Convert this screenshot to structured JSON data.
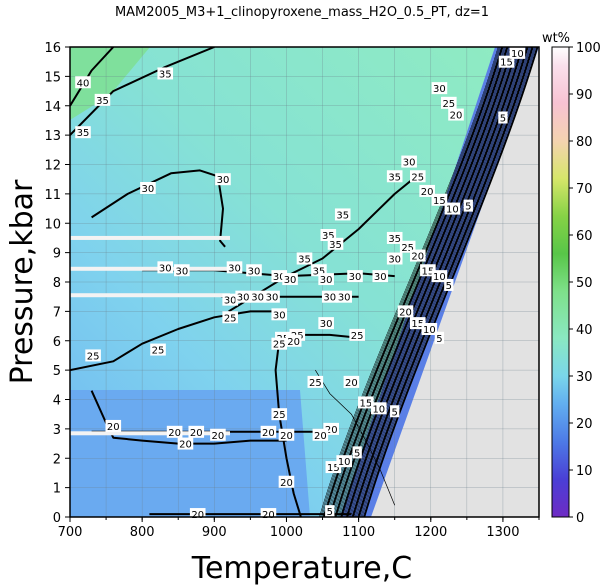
{
  "chart_data": {
    "type": "heatmap",
    "title": "MAM2005_M3+1_clinopyroxene_mass_H2O_0.5_PT, dz=1",
    "xlabel": "Temperature,C",
    "ylabel": "Pressure,kbar",
    "xlim": [
      700,
      1350
    ],
    "ylim": [
      0,
      16
    ],
    "x_ticks": [
      "700",
      "800",
      "900",
      "1000",
      "1100",
      "1200",
      "1300"
    ],
    "y_ticks": [
      "0",
      "1",
      "2",
      "3",
      "4",
      "5",
      "6",
      "7",
      "8",
      "9",
      "10",
      "11",
      "12",
      "13",
      "14",
      "15",
      "16"
    ],
    "grid": true,
    "colorbar": {
      "label": "wt%",
      "range": [
        0,
        100
      ],
      "ticks": [
        "0",
        "10",
        "20",
        "30",
        "40",
        "50",
        "60",
        "70",
        "80",
        "90",
        "100"
      ]
    },
    "bold_contours": [
      5,
      10,
      15,
      20,
      25,
      30,
      35,
      40
    ],
    "contour_labels": [
      {
        "text": "40",
        "x": 718,
        "y": 14.8
      },
      {
        "text": "35",
        "x": 745,
        "y": 14.2
      },
      {
        "text": "35",
        "x": 832,
        "y": 15.1
      },
      {
        "text": "35",
        "x": 718,
        "y": 13.1
      },
      {
        "text": "30",
        "x": 808,
        "y": 11.2
      },
      {
        "text": "30",
        "x": 912,
        "y": 11.5
      },
      {
        "text": "30",
        "x": 1212,
        "y": 14.6
      },
      {
        "text": "25",
        "x": 1225,
        "y": 14.1
      },
      {
        "text": "20",
        "x": 1235,
        "y": 13.7
      },
      {
        "text": "15",
        "x": 1305,
        "y": 15.5
      },
      {
        "text": "10",
        "x": 1320,
        "y": 15.8
      },
      {
        "text": "5",
        "x": 1300,
        "y": 13.6
      },
      {
        "text": "35",
        "x": 1150,
        "y": 11.6
      },
      {
        "text": "30",
        "x": 1170,
        "y": 12.1
      },
      {
        "text": "25",
        "x": 1182,
        "y": 11.6
      },
      {
        "text": "20",
        "x": 1195,
        "y": 11.1
      },
      {
        "text": "15",
        "x": 1212,
        "y": 10.8
      },
      {
        "text": "10",
        "x": 1230,
        "y": 10.5
      },
      {
        "text": "5",
        "x": 1252,
        "y": 10.6
      },
      {
        "text": "35",
        "x": 1078,
        "y": 10.3
      },
      {
        "text": "35",
        "x": 1150,
        "y": 9.5
      },
      {
        "text": "35",
        "x": 1058,
        "y": 9.6
      },
      {
        "text": "35",
        "x": 1068,
        "y": 9.3
      },
      {
        "text": "35",
        "x": 1025,
        "y": 8.8
      },
      {
        "text": "35",
        "x": 1045,
        "y": 8.4
      },
      {
        "text": "30",
        "x": 1150,
        "y": 8.8
      },
      {
        "text": "25",
        "x": 1168,
        "y": 9.2
      },
      {
        "text": "20",
        "x": 1182,
        "y": 8.9
      },
      {
        "text": "15",
        "x": 1196,
        "y": 8.4
      },
      {
        "text": "10",
        "x": 1212,
        "y": 8.2
      },
      {
        "text": "5",
        "x": 1225,
        "y": 7.9
      },
      {
        "text": "30",
        "x": 832,
        "y": 8.5
      },
      {
        "text": "30",
        "x": 855,
        "y": 8.4
      },
      {
        "text": "30",
        "x": 928,
        "y": 8.5
      },
      {
        "text": "30",
        "x": 955,
        "y": 8.4
      },
      {
        "text": "30",
        "x": 990,
        "y": 8.2
      },
      {
        "text": "30",
        "x": 1005,
        "y": 8.1
      },
      {
        "text": "30",
        "x": 1055,
        "y": 8.1
      },
      {
        "text": "30",
        "x": 1095,
        "y": 8.2
      },
      {
        "text": "30",
        "x": 1130,
        "y": 8.2
      },
      {
        "text": "30",
        "x": 922,
        "y": 7.4
      },
      {
        "text": "30",
        "x": 940,
        "y": 7.5
      },
      {
        "text": "30",
        "x": 960,
        "y": 7.5
      },
      {
        "text": "30",
        "x": 980,
        "y": 7.5
      },
      {
        "text": "30",
        "x": 1060,
        "y": 7.5
      },
      {
        "text": "30",
        "x": 1080,
        "y": 7.5
      },
      {
        "text": "30",
        "x": 990,
        "y": 6.9
      },
      {
        "text": "30",
        "x": 1055,
        "y": 6.6
      },
      {
        "text": "25",
        "x": 922,
        "y": 6.8
      },
      {
        "text": "25",
        "x": 995,
        "y": 6.1
      },
      {
        "text": "25",
        "x": 1015,
        "y": 6.2
      },
      {
        "text": "25",
        "x": 1098,
        "y": 6.2
      },
      {
        "text": "25",
        "x": 990,
        "y": 5.9
      },
      {
        "text": "20",
        "x": 1010,
        "y": 6.0
      },
      {
        "text": "20",
        "x": 1165,
        "y": 7.0
      },
      {
        "text": "15",
        "x": 1182,
        "y": 6.6
      },
      {
        "text": "10",
        "x": 1198,
        "y": 6.4
      },
      {
        "text": "5",
        "x": 1212,
        "y": 6.1
      },
      {
        "text": "25",
        "x": 732,
        "y": 5.5
      },
      {
        "text": "25",
        "x": 822,
        "y": 5.7
      },
      {
        "text": "25",
        "x": 1040,
        "y": 4.6
      },
      {
        "text": "20",
        "x": 1090,
        "y": 4.6
      },
      {
        "text": "15",
        "x": 1110,
        "y": 3.9
      },
      {
        "text": "10",
        "x": 1128,
        "y": 3.7
      },
      {
        "text": "5",
        "x": 1150,
        "y": 3.6
      },
      {
        "text": "25",
        "x": 990,
        "y": 3.5
      },
      {
        "text": "20",
        "x": 1062,
        "y": 3.0
      },
      {
        "text": "20",
        "x": 1047,
        "y": 2.8
      },
      {
        "text": "20",
        "x": 760,
        "y": 3.1
      },
      {
        "text": "20",
        "x": 845,
        "y": 2.9
      },
      {
        "text": "20",
        "x": 875,
        "y": 2.9
      },
      {
        "text": "20",
        "x": 905,
        "y": 2.8
      },
      {
        "text": "20",
        "x": 975,
        "y": 2.9
      },
      {
        "text": "20",
        "x": 1000,
        "y": 2.8
      },
      {
        "text": "20",
        "x": 860,
        "y": 2.5
      },
      {
        "text": "15",
        "x": 1065,
        "y": 1.7
      },
      {
        "text": "10",
        "x": 1080,
        "y": 1.9
      },
      {
        "text": "5",
        "x": 1098,
        "y": 2.2
      },
      {
        "text": "20",
        "x": 1000,
        "y": 1.2
      },
      {
        "text": "20",
        "x": 877,
        "y": 0.1
      },
      {
        "text": "20",
        "x": 975,
        "y": 0.1
      },
      {
        "text": "5",
        "x": 1060,
        "y": 0.2
      }
    ]
  }
}
